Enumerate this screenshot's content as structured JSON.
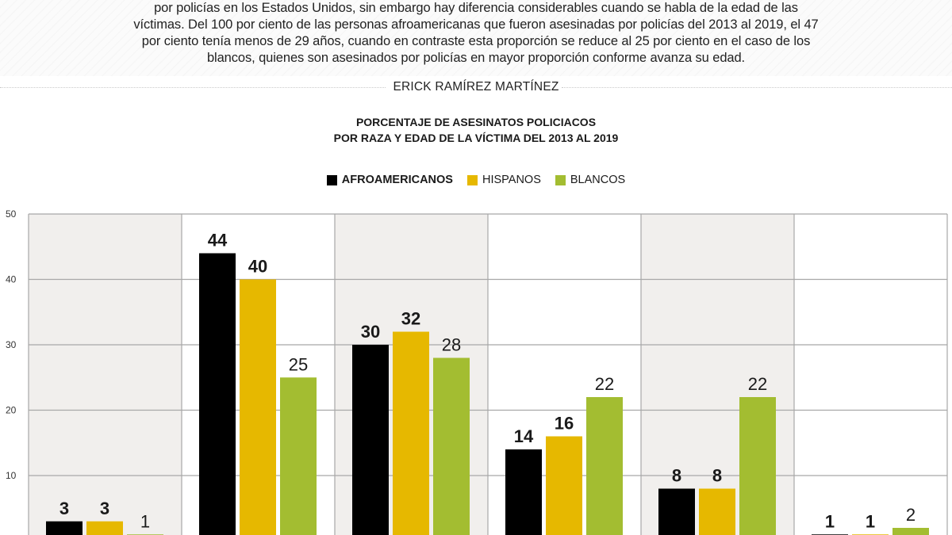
{
  "intro": {
    "lines": [
      "por policías en los Estados Unidos, sin embargo hay diferencia considerables cuando se habla de la edad de las",
      "víctimas. Del 100 por ciento de las personas afroamericanas que fueron asesinadas por policías del 2013 al 2019, el 47",
      "por ciento tenía menos de 29 años, cuando en contraste esta proporción se reduce al 25 por ciento en el caso de los",
      "blancos, quienes son asesinados por policías en mayor proporción conforme avanza su edad."
    ]
  },
  "author": "ERICK RAMÍREZ MARTÍNEZ",
  "colors": {
    "afroamericanos": "#000000",
    "hispanos": "#e6b800",
    "blancos": "#a3bd31",
    "panel_shade": "#f1efed",
    "grid": "#a8a8a8"
  },
  "chart_data": {
    "type": "bar",
    "title": "PORCENTAJE DE ASESINATOS POLICIACOS",
    "subtitle": "POR RAZA Y EDAD DE LA VÍCTIMA DEL 2013 AL 2019",
    "xlabel": "",
    "ylabel": "",
    "ylim": [
      0,
      50
    ],
    "yticks": [
      "10",
      "20",
      "30",
      "40",
      "50"
    ],
    "grid": true,
    "legend_position": "top-center",
    "categories": [
      "",
      "",
      "",
      "",
      "",
      ""
    ],
    "series": [
      {
        "name": "AFROAMERICANOS",
        "color_key": "afroamericanos",
        "values": [
          3,
          44,
          30,
          14,
          8,
          1
        ],
        "labels": [
          "3",
          "44",
          "30",
          "14",
          "8",
          "1"
        ]
      },
      {
        "name": "HISPANOS",
        "color_key": "hispanos",
        "values": [
          3,
          40,
          32,
          16,
          8,
          1
        ],
        "labels": [
          "3",
          "40",
          "32",
          "16",
          "8",
          "1"
        ]
      },
      {
        "name": "BLANCOS",
        "color_key": "blancos",
        "values": [
          1,
          25,
          28,
          22,
          22,
          2
        ],
        "labels": [
          "1",
          "25",
          "28",
          "22",
          "22",
          "2"
        ]
      }
    ]
  }
}
